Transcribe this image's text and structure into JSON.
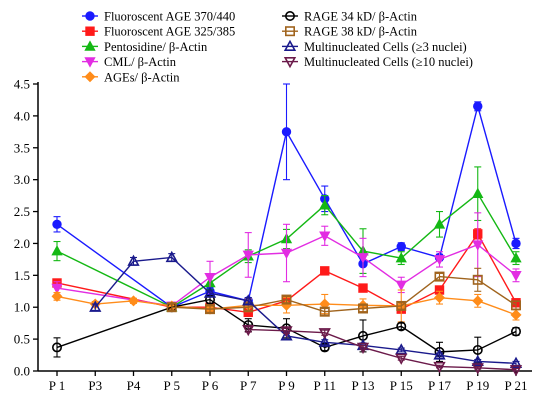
{
  "chart_data": {
    "type": "line",
    "title": "",
    "xlabel": "",
    "ylabel": "",
    "ylim": [
      0,
      4.5
    ],
    "yticks": [
      "0.0",
      "0.5",
      "1.0",
      "1.5",
      "2.0",
      "2.5",
      "3.0",
      "3.5",
      "4.0",
      "4.5"
    ],
    "grid": false,
    "legend_position": "top",
    "categories": [
      "P 1",
      "P3",
      "P4",
      "P 5",
      "P 6",
      "P 7",
      "P 9",
      "P 11",
      "P 13",
      "P 15",
      "P 17",
      "P 19",
      "P 21"
    ],
    "series": [
      {
        "name": "Fluoroscent AGE 370/440",
        "color": "#1a1aff",
        "marker": "circle-filled",
        "values": [
          2.3,
          null,
          null,
          1.0,
          1.25,
          1.1,
          3.75,
          2.7,
          1.68,
          1.95,
          1.78,
          4.15,
          2.0
        ],
        "errors": [
          0.12,
          null,
          null,
          0.05,
          0.06,
          0.05,
          0.75,
          0.2,
          0.04,
          0.06,
          0.05,
          0.07,
          0.08
        ]
      },
      {
        "name": "Fluoroscent AGE 325/385",
        "color": "#ff1a1a",
        "marker": "square-filled",
        "values": [
          1.38,
          null,
          null,
          1.0,
          1.0,
          0.92,
          1.1,
          1.57,
          1.3,
          0.97,
          1.27,
          2.15,
          1.07
        ],
        "errors": [
          0.05,
          null,
          null,
          0.04,
          0.04,
          0.04,
          0.06,
          0.06,
          0.05,
          0.05,
          0.06,
          0.08,
          0.05
        ]
      },
      {
        "name": "Pentosidine/ β-Actin",
        "color": "#14b814",
        "marker": "triangle-up-filled",
        "values": [
          1.88,
          null,
          null,
          1.0,
          1.38,
          1.8,
          2.07,
          2.6,
          1.88,
          1.77,
          2.3,
          2.78,
          1.77
        ],
        "errors": [
          0.15,
          null,
          null,
          0.05,
          0.1,
          0.1,
          0.15,
          0.15,
          0.35,
          0.1,
          0.2,
          0.42,
          0.1
        ]
      },
      {
        "name": "CML/ β-Actin",
        "color": "#e22de2",
        "marker": "triangle-down-filled",
        "values": [
          1.3,
          null,
          null,
          1.02,
          1.47,
          1.82,
          1.85,
          2.12,
          1.78,
          1.35,
          1.75,
          1.98,
          1.5
        ],
        "errors": [
          0.1,
          null,
          null,
          0.06,
          0.25,
          0.35,
          0.45,
          0.15,
          0.3,
          0.12,
          0.12,
          0.5,
          0.1
        ]
      },
      {
        "name": "AGEs/ β-Actin",
        "color": "#ff8c1a",
        "marker": "diamond-filled",
        "values": [
          1.17,
          1.05,
          1.1,
          1.02,
          0.97,
          1.03,
          1.03,
          1.05,
          1.03,
          1.02,
          1.15,
          1.1,
          0.88
        ],
        "errors": [
          0.06,
          0.04,
          0.04,
          0.05,
          0.05,
          0.1,
          0.12,
          0.15,
          0.1,
          0.25,
          0.1,
          0.1,
          0.08
        ]
      },
      {
        "name": "RAGE 34 kD/ β-Actin",
        "color": "#000000",
        "marker": "circle-open",
        "values": [
          0.37,
          null,
          null,
          1.0,
          1.12,
          0.72,
          0.67,
          0.37,
          0.55,
          0.7,
          0.3,
          0.33,
          0.62
        ],
        "errors": [
          0.15,
          null,
          null,
          0.05,
          0.06,
          0.1,
          0.15,
          0.05,
          0.25,
          0.05,
          0.15,
          0.2,
          0.06
        ]
      },
      {
        "name": "RAGE 38 kD/ β-Actin",
        "color": "#a0641e",
        "marker": "square-open",
        "values": [
          null,
          null,
          null,
          1.0,
          0.97,
          1.0,
          1.12,
          0.93,
          0.98,
          1.02,
          1.48,
          1.43,
          1.03
        ],
        "errors": [
          null,
          null,
          null,
          0.05,
          0.05,
          0.05,
          0.05,
          0.05,
          0.05,
          0.05,
          0.05,
          0.18,
          0.06
        ]
      },
      {
        "name": "Multinucleated Cells (≥3 nuclei)",
        "color": "#1a1a8c",
        "marker": "triangle-up-open",
        "values": [
          null,
          1.0,
          1.72,
          1.78,
          1.22,
          1.1,
          0.55,
          0.45,
          0.4,
          0.33,
          0.25,
          0.15,
          0.12
        ],
        "errors": [
          null,
          0.05,
          0.06,
          0.06,
          0.05,
          0.05,
          0.05,
          0.04,
          0.04,
          0.03,
          0.03,
          0.03,
          0.03
        ]
      },
      {
        "name": "Multinucleated Cells (≥10 nuclei)",
        "color": "#6b1a4a",
        "marker": "triangle-down-open",
        "values": [
          null,
          null,
          null,
          null,
          null,
          0.65,
          0.63,
          0.6,
          0.37,
          0.2,
          0.07,
          0.05,
          0.02
        ],
        "errors": [
          null,
          null,
          null,
          null,
          null,
          0.04,
          0.04,
          0.04,
          0.03,
          0.03,
          0.02,
          0.02,
          0.02
        ]
      }
    ]
  }
}
